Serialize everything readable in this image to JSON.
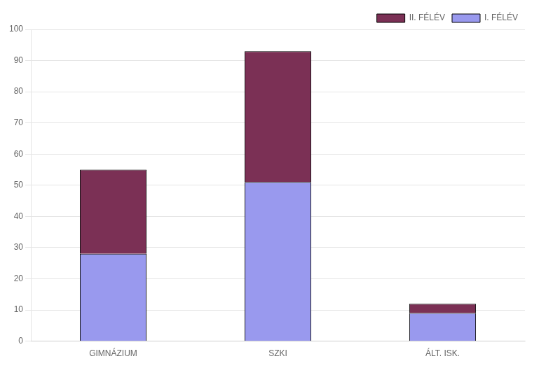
{
  "chart_data": {
    "type": "bar",
    "stacked": true,
    "categories": [
      "GIMNÁZIUM",
      "SZKI",
      "ÁLT. ISK."
    ],
    "series": [
      {
        "name": "I. FÉLÉV",
        "color": "#9999EE",
        "values": [
          28,
          51,
          9
        ]
      },
      {
        "name": "II. FÉLÉV",
        "color": "#7B3055",
        "values": [
          27,
          42,
          3
        ]
      }
    ],
    "ylim": [
      0,
      100
    ],
    "yticks": [
      0,
      10,
      20,
      30,
      40,
      50,
      60,
      70,
      80,
      90,
      100
    ],
    "grid": true,
    "legend": "upper right"
  }
}
